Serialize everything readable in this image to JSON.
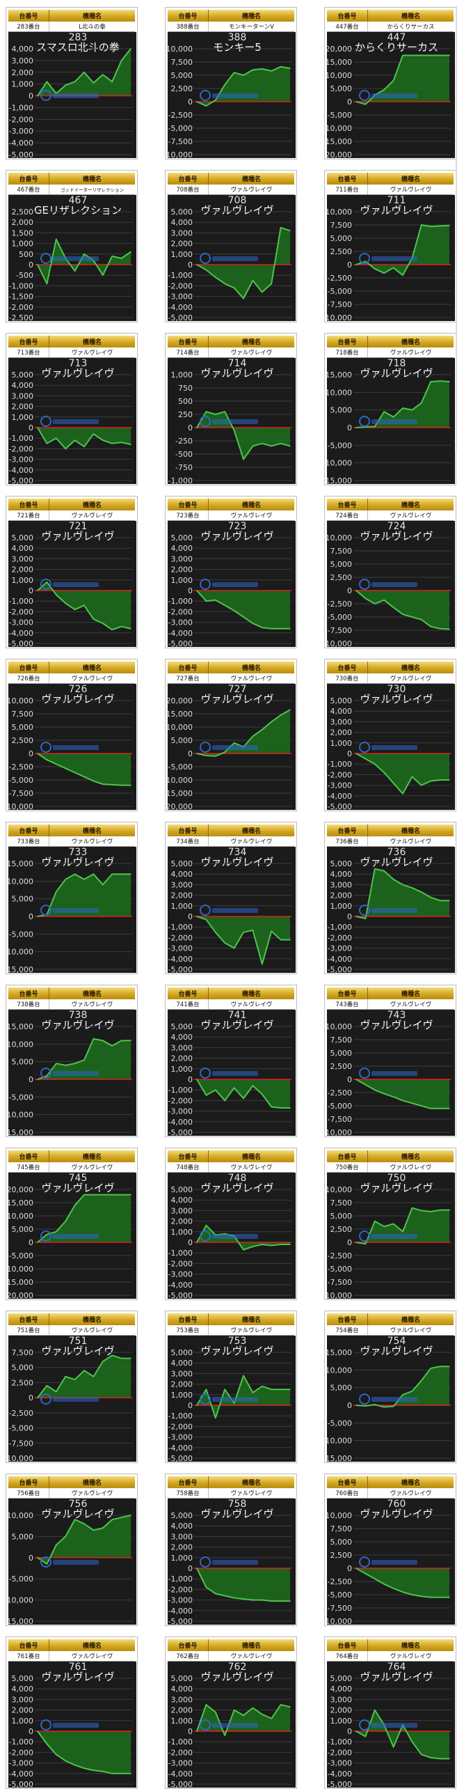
{
  "header": {
    "col_no": "台番号",
    "col_model": "機種名"
  },
  "colors": {
    "bg": "#1b1b1b",
    "line": "#4dc44d",
    "fill": "#1c6e1c",
    "zero": "#e02020",
    "grid": "#3c3c3c"
  },
  "chart_data": [
    {
      "type": "area",
      "no_label": "283番台",
      "model": "L北斗の拳",
      "title_no": "283",
      "title_name": "スマスロ北斗の拳",
      "ticks": [
        "4,000",
        "3,000",
        "2,000",
        "1,000",
        "0",
        "-1,000",
        "-2,000",
        "-3,000",
        "-4,000",
        "-5,000"
      ],
      "ylim": [
        -5000,
        4000
      ],
      "values": [
        0,
        1200,
        200,
        900,
        1200,
        2000,
        1100,
        1800,
        1200,
        3000,
        4000
      ]
    },
    {
      "type": "area",
      "no_label": "388番台",
      "model": "モンキーターンV",
      "title_no": "388",
      "title_name": "モンキー5",
      "ticks": [
        "10,000",
        "7,500",
        "5,000",
        "2,500",
        "0",
        "-2,500",
        "-5,000",
        "-7,500",
        "-10,000"
      ],
      "ylim": [
        -10000,
        10000
      ],
      "values": [
        0,
        -800,
        300,
        3200,
        5500,
        5000,
        6000,
        6200,
        5800,
        6600,
        6300
      ]
    },
    {
      "type": "area",
      "no_label": "447番台",
      "model": "からくりサーカス",
      "title_no": "447",
      "title_name": "からくりサーカス",
      "ticks": [
        "20,000",
        "15,000",
        "10,000",
        "5,000",
        "0",
        "-5,000",
        "-10,000",
        "-15,000",
        "-20,000"
      ],
      "ylim": [
        -20000,
        20000
      ],
      "values": [
        0,
        -1000,
        2500,
        4500,
        8000,
        17500,
        17500,
        17500,
        17500,
        17500,
        17500
      ]
    },
    {
      "type": "area",
      "no_label": "467番台",
      "model": "ゴッドイーターリザレクション",
      "title_no": "467",
      "title_name": "GEリザレクション",
      "ticks": [
        "2,500",
        "2,000",
        "1,500",
        "1,000",
        "500",
        "0",
        "-500",
        "-1,000",
        "-1,500",
        "-2,000",
        "-2,500"
      ],
      "ylim": [
        -2500,
        2500
      ],
      "values": [
        0,
        -900,
        1200,
        300,
        -300,
        500,
        200,
        -500,
        400,
        300,
        600
      ]
    },
    {
      "type": "area",
      "no_label": "708番台",
      "model": "ヴァルヴレイヴ",
      "title_no": "708",
      "title_name": "ヴァルヴレイヴ",
      "ticks": [
        "5,000",
        "4,000",
        "3,000",
        "2,000",
        "1,000",
        "0",
        "-1,000",
        "-2,000",
        "-3,000",
        "-4,000",
        "-5,000"
      ],
      "ylim": [
        -5000,
        5000
      ],
      "values": [
        0,
        -500,
        -1200,
        -1800,
        -2200,
        -3200,
        -1500,
        -2600,
        -1800,
        3500,
        3200
      ]
    },
    {
      "type": "area",
      "no_label": "711番台",
      "model": "ヴァルヴレイヴ",
      "title_no": "711",
      "title_name": "ヴァルヴレイヴ",
      "ticks": [
        "10,000",
        "7,500",
        "5,000",
        "2,500",
        "0",
        "-2,500",
        "-5,000",
        "-7,500",
        "-10,000"
      ],
      "ylim": [
        -10000,
        10000
      ],
      "values": [
        0,
        600,
        -800,
        -1600,
        -600,
        -2000,
        1200,
        7500,
        7200,
        7300,
        7400
      ]
    },
    {
      "type": "area",
      "no_label": "713番台",
      "model": "ヴァルヴレイヴ",
      "title_no": "713",
      "title_name": "ヴァルヴレイヴ",
      "ticks": [
        "5,000",
        "4,000",
        "3,000",
        "2,000",
        "1,000",
        "0",
        "-1,000",
        "-2,000",
        "-3,000",
        "-4,000",
        "-5,000"
      ],
      "ylim": [
        -5000,
        5000
      ],
      "values": [
        0,
        -1500,
        -1000,
        -2000,
        -1200,
        -1800,
        -600,
        -1200,
        -1500,
        -1400,
        -1600
      ]
    },
    {
      "type": "area",
      "no_label": "714番台",
      "model": "ヴァルヴレイヴ",
      "title_no": "714",
      "title_name": "ヴァルヴレイヴ",
      "ticks": [
        "1,000",
        "750",
        "500",
        "250",
        "0",
        "-250",
        "-500",
        "-750",
        "-1,000"
      ],
      "ylim": [
        -1000,
        1000
      ],
      "values": [
        0,
        300,
        250,
        300,
        -50,
        -600,
        -350,
        -300,
        -350,
        -300,
        -350
      ]
    },
    {
      "type": "area",
      "no_label": "718番台",
      "model": "ヴァルヴレイヴ",
      "title_no": "718",
      "title_name": "ヴァルヴレイヴ",
      "ticks": [
        "15,000",
        "10,000",
        "5,000",
        "0",
        "-5,000",
        "-10,000",
        "-15,000"
      ],
      "ylim": [
        -15000,
        15000
      ],
      "values": [
        0,
        200,
        300,
        4500,
        3000,
        5500,
        5000,
        7000,
        13000,
        13200,
        13000
      ]
    },
    {
      "type": "area",
      "no_label": "721番台",
      "model": "ヴァルヴレイヴ",
      "title_no": "721",
      "title_name": "ヴァルヴレイヴ",
      "ticks": [
        "5,000",
        "4,000",
        "3,000",
        "2,000",
        "1,000",
        "0",
        "-1,000",
        "-2,000",
        "-3,000",
        "-4,000",
        "-5,000"
      ],
      "ylim": [
        -5000,
        5000
      ],
      "values": [
        0,
        800,
        -400,
        -1200,
        -1800,
        -1400,
        -2700,
        -3100,
        -3700,
        -3400,
        -3600
      ]
    },
    {
      "type": "area",
      "no_label": "723番台",
      "model": "ヴァルヴレイヴ",
      "title_no": "723",
      "title_name": "ヴァルヴレイヴ",
      "ticks": [
        "5,000",
        "4,000",
        "3,000",
        "2,000",
        "1,000",
        "0",
        "-1,000",
        "-2,000",
        "-3,000",
        "-4,000",
        "-5,000"
      ],
      "ylim": [
        -5000,
        5000
      ],
      "values": [
        0,
        -1000,
        -900,
        -1400,
        -1900,
        -2500,
        -3100,
        -3500,
        -3600,
        -3600,
        -3600
      ]
    },
    {
      "type": "area",
      "no_label": "724番台",
      "model": "ヴァルヴレイヴ",
      "title_no": "724",
      "title_name": "ヴァルヴレイヴ",
      "ticks": [
        "10,000",
        "7,500",
        "5,000",
        "2,500",
        "0",
        "-2,500",
        "-5,000",
        "-7,500",
        "-10,000"
      ],
      "ylim": [
        -10000,
        10000
      ],
      "values": [
        0,
        -1500,
        -2500,
        -1800,
        -3200,
        -4500,
        -5000,
        -5500,
        -6800,
        -7200,
        -7300
      ]
    },
    {
      "type": "area",
      "no_label": "726番台",
      "model": "ヴァルヴレイヴ",
      "title_no": "726",
      "title_name": "ヴァルヴレイヴ",
      "ticks": [
        "10,000",
        "7,500",
        "5,000",
        "2,500",
        "0",
        "-2,500",
        "-5,000",
        "-7,500",
        "-10,000"
      ],
      "ylim": [
        -10000,
        10000
      ],
      "values": [
        0,
        -1200,
        -2000,
        -2800,
        -3600,
        -4400,
        -5200,
        -5800,
        -5900,
        -6000,
        -6000
      ]
    },
    {
      "type": "area",
      "no_label": "727番台",
      "model": "ヴァルヴレイヴ",
      "title_no": "727",
      "title_name": "ヴァルヴレイヴ",
      "ticks": [
        "20,000",
        "15,000",
        "10,000",
        "5,000",
        "0",
        "-5,000",
        "-10,000",
        "-15,000",
        "-20,000"
      ],
      "ylim": [
        -20000,
        20000
      ],
      "values": [
        0,
        -800,
        -1000,
        500,
        4000,
        2500,
        6500,
        9000,
        12000,
        14500,
        16500
      ]
    },
    {
      "type": "area",
      "no_label": "730番台",
      "model": "ヴァルヴレイヴ",
      "title_no": "730",
      "title_name": "ヴァルヴレイヴ",
      "ticks": [
        "5,000",
        "4,000",
        "3,000",
        "2,000",
        "1,000",
        "0",
        "-1,000",
        "-2,000",
        "-3,000",
        "-4,000",
        "-5,000"
      ],
      "ylim": [
        -5000,
        5000
      ],
      "values": [
        0,
        -500,
        -1000,
        -1800,
        -2800,
        -3800,
        -2200,
        -3000,
        -2600,
        -2500,
        -2500
      ]
    },
    {
      "type": "area",
      "no_label": "733番台",
      "model": "ヴァルヴレイヴ",
      "title_no": "733",
      "title_name": "ヴァルヴレイヴ",
      "ticks": [
        "15,000",
        "10,000",
        "5,000",
        "0",
        "-5,000",
        "-10,000",
        "-15,000"
      ],
      "ylim": [
        -15000,
        15000
      ],
      "values": [
        0,
        500,
        7000,
        10500,
        12000,
        10500,
        12000,
        9000,
        12000,
        12000,
        12000
      ]
    },
    {
      "type": "area",
      "no_label": "734番台",
      "model": "ヴァルヴレイヴ",
      "title_no": "734",
      "title_name": "ヴァルヴレイヴ",
      "ticks": [
        "5,000",
        "4,000",
        "3,000",
        "2,000",
        "1,000",
        "0",
        "-1,000",
        "-2,000",
        "-3,000",
        "-4,000",
        "-5,000"
      ],
      "ylim": [
        -5000,
        5000
      ],
      "values": [
        0,
        -300,
        -1500,
        -2500,
        -3000,
        -1500,
        -1300,
        -4500,
        -1400,
        -2200,
        -2200
      ]
    },
    {
      "type": "area",
      "no_label": "736番台",
      "model": "ヴァルヴレイヴ",
      "title_no": "736",
      "title_name": "ヴァルヴレイヴ",
      "ticks": [
        "5,000",
        "4,000",
        "3,000",
        "2,000",
        "1,000",
        "0",
        "-1,000",
        "-2,000",
        "-3,000",
        "-4,000",
        "-5,000"
      ],
      "ylim": [
        -5000,
        5000
      ],
      "values": [
        0,
        -200,
        4500,
        4300,
        3500,
        3000,
        2700,
        2300,
        1800,
        1500,
        1500
      ]
    },
    {
      "type": "area",
      "no_label": "738番台",
      "model": "ヴァルヴレイヴ",
      "title_no": "738",
      "title_name": "ヴァルヴレイヴ",
      "ticks": [
        "15,000",
        "10,000",
        "5,000",
        "0",
        "-5,000",
        "-10,000",
        "-15,000"
      ],
      "ylim": [
        -15000,
        15000
      ],
      "values": [
        0,
        1000,
        4500,
        4000,
        4500,
        5500,
        11500,
        11000,
        9500,
        11000,
        11000
      ]
    },
    {
      "type": "area",
      "no_label": "741番台",
      "model": "ヴァルヴレイヴ",
      "title_no": "741",
      "title_name": "ヴァルヴレイヴ",
      "ticks": [
        "5,000",
        "4,000",
        "3,000",
        "2,000",
        "1,000",
        "0",
        "-1,000",
        "-2,000",
        "-3,000",
        "-4,000",
        "-5,000"
      ],
      "ylim": [
        -5000,
        5000
      ],
      "values": [
        0,
        -1500,
        -1000,
        -2000,
        -800,
        -1800,
        -600,
        -1400,
        -2600,
        -2700,
        -2700
      ]
    },
    {
      "type": "area",
      "no_label": "743番台",
      "model": "ヴァルヴレイヴ",
      "title_no": "743",
      "title_name": "ヴァルヴレイヴ",
      "ticks": [
        "10,000",
        "7,500",
        "5,000",
        "2,500",
        "0",
        "-2,500",
        "-5,000",
        "-7,500",
        "-10,000"
      ],
      "ylim": [
        -10000,
        10000
      ],
      "values": [
        0,
        -1000,
        -2000,
        -2700,
        -3300,
        -4000,
        -4500,
        -5000,
        -5500,
        -5500,
        -5500
      ]
    },
    {
      "type": "area",
      "no_label": "745番台",
      "model": "ヴァルヴレイヴ",
      "title_no": "745",
      "title_name": "ヴァルヴレイヴ",
      "ticks": [
        "20,000",
        "15,000",
        "10,000",
        "5,000",
        "0",
        "-5,000",
        "-10,000",
        "-15,000",
        "-20,000"
      ],
      "ylim": [
        -20000,
        20000
      ],
      "values": [
        0,
        3000,
        4000,
        8000,
        14000,
        18000,
        18000,
        18000,
        18000,
        18000,
        18000
      ]
    },
    {
      "type": "area",
      "no_label": "748番台",
      "model": "ヴァルヴレイヴ",
      "title_no": "748",
      "title_name": "ヴァルヴレイヴ",
      "ticks": [
        "5,000",
        "4,000",
        "3,000",
        "2,000",
        "1,000",
        "0",
        "-1,000",
        "-2,000",
        "-3,000",
        "-4,000",
        "-5,000"
      ],
      "ylim": [
        -5000,
        5000
      ],
      "values": [
        0,
        1600,
        700,
        800,
        600,
        -700,
        -400,
        -200,
        -300,
        -200,
        -200
      ]
    },
    {
      "type": "area",
      "no_label": "750番台",
      "model": "ヴァルヴレイヴ",
      "title_no": "750",
      "title_name": "ヴァルヴレイヴ",
      "ticks": [
        "10,000",
        "7,500",
        "5,000",
        "2,500",
        "0",
        "-2,500",
        "-5,000",
        "-7,500",
        "-10,000"
      ],
      "ylim": [
        -10000,
        10000
      ],
      "values": [
        0,
        -300,
        4000,
        3000,
        3500,
        2000,
        6500,
        6000,
        5800,
        6100,
        6100
      ]
    },
    {
      "type": "area",
      "no_label": "751番台",
      "model": "ヴァルヴレイヴ",
      "title_no": "751",
      "title_name": "ヴァルヴレイヴ",
      "ticks": [
        "7,500",
        "5,000",
        "2,500",
        "0",
        "-2,500",
        "-5,000",
        "-7,500",
        "-10,000"
      ],
      "ylim": [
        -10000,
        7500
      ],
      "values": [
        0,
        2000,
        1000,
        3500,
        3000,
        4500,
        3500,
        6000,
        7000,
        6500,
        6500
      ]
    },
    {
      "type": "area",
      "no_label": "753番台",
      "model": "ヴァルヴレイヴ",
      "title_no": "753",
      "title_name": "ヴァルヴレイヴ",
      "ticks": [
        "5,000",
        "4,000",
        "3,000",
        "2,000",
        "1,000",
        "0",
        "-1,000",
        "-2,000",
        "-3,000",
        "-4,000",
        "-5,000"
      ],
      "ylim": [
        -5000,
        5000
      ],
      "values": [
        0,
        1500,
        -1200,
        1500,
        200,
        2800,
        1200,
        1800,
        1500,
        1500,
        1500
      ]
    },
    {
      "type": "area",
      "no_label": "754番台",
      "model": "ヴァルヴレイヴ",
      "title_no": "754",
      "title_name": "ヴァルヴレイヴ",
      "ticks": [
        "15,000",
        "10,000",
        "5,000",
        "0",
        "-5,000",
        "-10,000",
        "-15,000"
      ],
      "ylim": [
        -15000,
        15000
      ],
      "values": [
        0,
        -200,
        200,
        -500,
        -300,
        3000,
        4000,
        7000,
        10500,
        11000,
        11000
      ]
    },
    {
      "type": "area",
      "no_label": "756番台",
      "model": "ヴァルヴレイヴ",
      "title_no": "756",
      "title_name": "ヴァルヴレイヴ",
      "ticks": [
        "10,000",
        "5,000",
        "0",
        "-5,000",
        "-10,000",
        "-15,000"
      ],
      "ylim": [
        -15000,
        10000
      ],
      "values": [
        0,
        -1500,
        3000,
        5000,
        9000,
        8000,
        6500,
        7000,
        9000,
        9500,
        10000
      ]
    },
    {
      "type": "area",
      "no_label": "758番台",
      "model": "ヴァルヴレイヴ",
      "title_no": "758",
      "title_name": "ヴァルヴレイヴ",
      "ticks": [
        "5,000",
        "4,000",
        "3,000",
        "2,000",
        "1,000",
        "0",
        "-1,000",
        "-2,000",
        "-3,000",
        "-4,000",
        "-5,000"
      ],
      "ylim": [
        -5000,
        5000
      ],
      "values": [
        0,
        -1800,
        -2400,
        -2600,
        -2800,
        -2900,
        -3000,
        -3000,
        -3100,
        -3100,
        -3100
      ]
    },
    {
      "type": "area",
      "no_label": "760番台",
      "model": "ヴァルヴレイヴ",
      "title_no": "760",
      "title_name": "ヴァルヴレイヴ",
      "ticks": [
        "10,000",
        "7,500",
        "5,000",
        "2,500",
        "0",
        "-2,500",
        "-5,000",
        "-7,500",
        "-10,000"
      ],
      "ylim": [
        -10000,
        10000
      ],
      "values": [
        0,
        -1000,
        -2000,
        -3000,
        -3800,
        -4500,
        -5000,
        -5300,
        -5500,
        -5500,
        -5500
      ]
    },
    {
      "type": "area",
      "no_label": "761番台",
      "model": "ヴァルヴレイヴ",
      "title_no": "761",
      "title_name": "ヴァルヴレイヴ",
      "ticks": [
        "5,000",
        "4,000",
        "3,000",
        "2,000",
        "1,000",
        "0",
        "-1,000",
        "-2,000",
        "-3,000",
        "-4,000",
        "-5,000"
      ],
      "ylim": [
        -5000,
        5000
      ],
      "values": [
        0,
        -1200,
        -2200,
        -2800,
        -3200,
        -3500,
        -3700,
        -3800,
        -4000,
        -4000,
        -4000
      ]
    },
    {
      "type": "area",
      "no_label": "762番台",
      "model": "ヴァルヴレイヴ",
      "title_no": "762",
      "title_name": "ヴァルヴレイヴ",
      "ticks": [
        "5,000",
        "4,000",
        "3,000",
        "2,000",
        "1,000",
        "0",
        "-1,000",
        "-2,000",
        "-3,000",
        "-4,000",
        "-5,000"
      ],
      "ylim": [
        -5000,
        5000
      ],
      "values": [
        0,
        2500,
        1800,
        -400,
        2000,
        1500,
        2200,
        1600,
        1200,
        2500,
        2300
      ]
    },
    {
      "type": "area",
      "no_label": "764番台",
      "model": "ヴァルヴレイヴ",
      "title_no": "764",
      "title_name": "ヴァルヴレイヴ",
      "ticks": [
        "5,000",
        "4,000",
        "3,000",
        "2,000",
        "1,000",
        "0",
        "-1,000",
        "-2,000",
        "-3,000",
        "-4,000",
        "-5,000"
      ],
      "ylim": [
        -5000,
        5000
      ],
      "values": [
        0,
        -500,
        2000,
        600,
        -1500,
        600,
        -1000,
        -2200,
        -2500,
        -2600,
        -2600
      ]
    }
  ]
}
